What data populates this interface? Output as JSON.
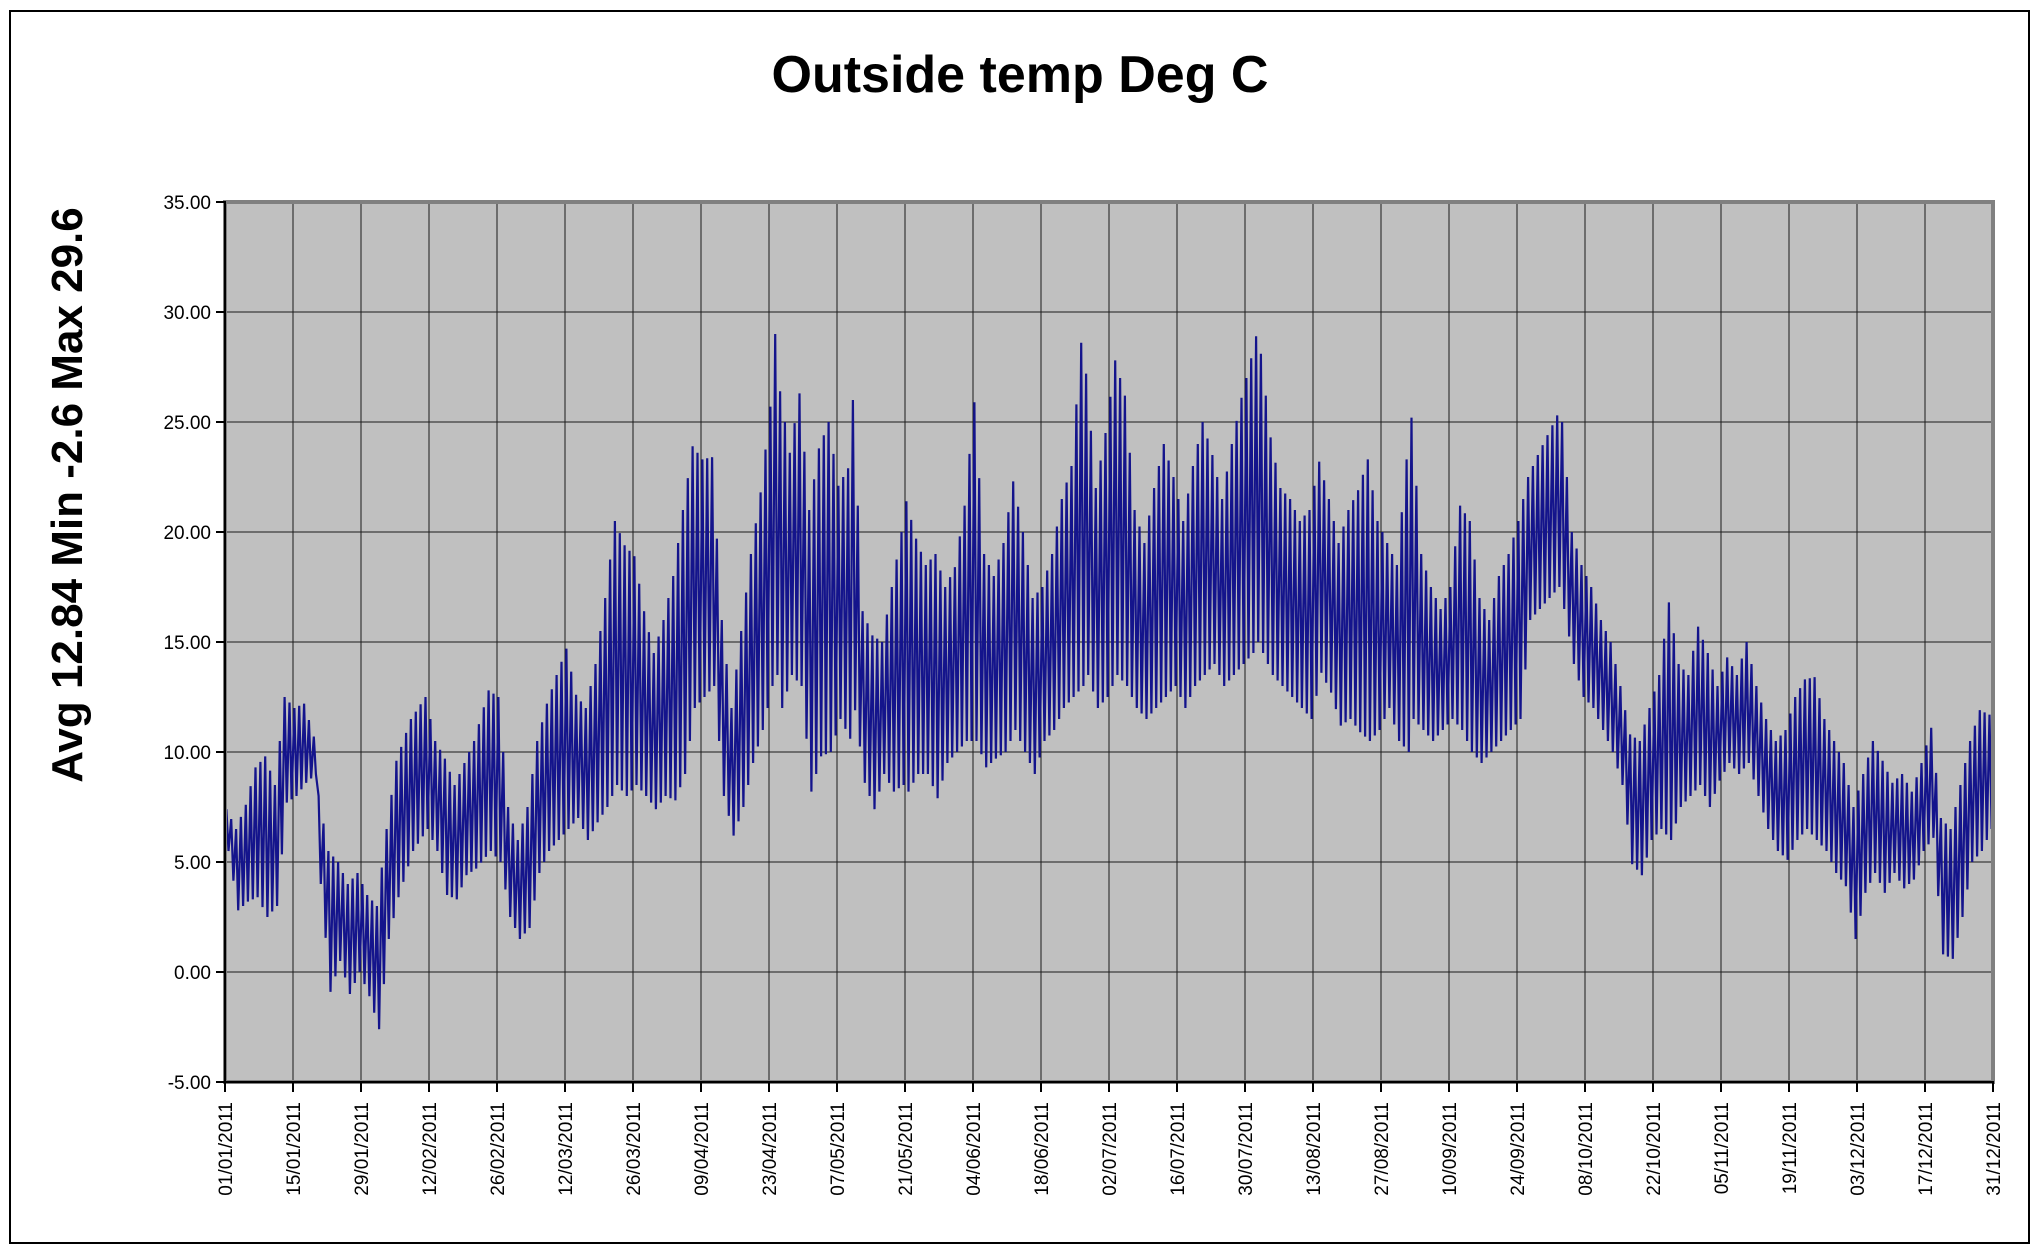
{
  "chart_data": {
    "type": "line",
    "title": "Outside temp Deg C",
    "y_axis_label": "Avg 12.84 Min -2.6 Max 29.6",
    "stats": {
      "avg": 12.84,
      "min": -2.6,
      "max": 29.6,
      "units": "Deg C"
    },
    "grid": true,
    "legend": "none",
    "plot_background_color": "#C0C0C0",
    "gridline_color": "#1a1a1a",
    "plot_border_color": "#808080",
    "axis_color": "#000000",
    "y_axis": {
      "min": -5,
      "max": 35,
      "step": 5,
      "tick_labels": [
        "35.00",
        "30.00",
        "25.00",
        "20.00",
        "15.00",
        "10.00",
        "5.00",
        "0.00",
        "-5.00"
      ]
    },
    "x_axis": {
      "interval_days": 14,
      "tick_labels": [
        "01/01/2011",
        "15/01/2011",
        "29/01/2011",
        "12/02/2011",
        "26/02/2011",
        "12/03/2011",
        "26/03/2011",
        "09/04/2011",
        "23/04/2011",
        "07/05/2011",
        "21/05/2011",
        "04/06/2011",
        "18/06/2011",
        "02/07/2011",
        "16/07/2011",
        "30/07/2011",
        "13/08/2011",
        "27/08/2011",
        "10/09/2011",
        "24/09/2011",
        "08/10/2011",
        "22/10/2011",
        "05/11/2011",
        "19/11/2011",
        "03/12/2011",
        "17/12/2011",
        "31/12/2011"
      ]
    },
    "series": [
      {
        "name": "Outside temp Deg C",
        "color": "#14148C",
        "line_width": 2.2,
        "days_total": 365,
        "sampling": "two samples per day (daytime high / night low), values in Deg C",
        "envelope_keyframes_day_low_high": [
          [
            0,
            5.5,
            7.4
          ],
          [
            2,
            2.8,
            6.5
          ],
          [
            4,
            3.2,
            7.6
          ],
          [
            6,
            3.4,
            9.3
          ],
          [
            8,
            2.5,
            9.8
          ],
          [
            10,
            3.0,
            8.5
          ],
          [
            12,
            7.7,
            12.5
          ],
          [
            14,
            8.0,
            12.0
          ],
          [
            16,
            8.6,
            12.2
          ],
          [
            18,
            9.0,
            10.7
          ],
          [
            19,
            4.0,
            8.0
          ],
          [
            21,
            -0.9,
            5.5
          ],
          [
            23,
            0.5,
            5.0
          ],
          [
            25,
            -1.0,
            4.0
          ],
          [
            27,
            0.0,
            4.5
          ],
          [
            29,
            -1.1,
            3.5
          ],
          [
            31,
            -2.6,
            3.0
          ],
          [
            33,
            1.5,
            6.5
          ],
          [
            35,
            3.4,
            9.6
          ],
          [
            38,
            5.5,
            11.5
          ],
          [
            41,
            6.5,
            12.5
          ],
          [
            43,
            5.5,
            10.5
          ],
          [
            45,
            3.5,
            9.7
          ],
          [
            47,
            3.3,
            8.5
          ],
          [
            49,
            4.4,
            9.5
          ],
          [
            51,
            4.7,
            10.5
          ],
          [
            54,
            5.5,
            12.8
          ],
          [
            56,
            5.0,
            12.5
          ],
          [
            58,
            2.5,
            7.5
          ],
          [
            60,
            1.5,
            6.0
          ],
          [
            62,
            2.0,
            7.5
          ],
          [
            64,
            4.5,
            10.5
          ],
          [
            66,
            5.5,
            12.2
          ],
          [
            68,
            6.0,
            13.5
          ],
          [
            70,
            6.5,
            14.7
          ],
          [
            72,
            7.0,
            12.6
          ],
          [
            74,
            6.0,
            12.0
          ],
          [
            76,
            6.8,
            14.0
          ],
          [
            78,
            7.5,
            17.0
          ],
          [
            80,
            8.5,
            20.5
          ],
          [
            82,
            8.0,
            19.4
          ],
          [
            84,
            8.5,
            18.9
          ],
          [
            86,
            8.0,
            16.4
          ],
          [
            88,
            7.4,
            14.5
          ],
          [
            90,
            8.0,
            16.0
          ],
          [
            92,
            7.8,
            18.0
          ],
          [
            94,
            9.0,
            21.0
          ],
          [
            96,
            12.0,
            23.9
          ],
          [
            98,
            12.5,
            23.3
          ],
          [
            100,
            13.0,
            23.4
          ],
          [
            102,
            8.0,
            16.0
          ],
          [
            104,
            6.2,
            12.0
          ],
          [
            106,
            7.5,
            15.5
          ],
          [
            108,
            9.5,
            19.0
          ],
          [
            110,
            11.0,
            21.8
          ],
          [
            112,
            13.0,
            25.7
          ],
          [
            113,
            13.5,
            29.0
          ],
          [
            114,
            12.0,
            26.4
          ],
          [
            116,
            13.5,
            23.6
          ],
          [
            118,
            13.0,
            26.3
          ],
          [
            120,
            8.2,
            21.0
          ],
          [
            122,
            9.8,
            23.8
          ],
          [
            124,
            10.0,
            25.0
          ],
          [
            126,
            11.5,
            22.1
          ],
          [
            128,
            10.6,
            22.9
          ],
          [
            129,
            11.9,
            26.0
          ],
          [
            131,
            8.6,
            16.4
          ],
          [
            133,
            7.4,
            15.3
          ],
          [
            135,
            9.0,
            15.0
          ],
          [
            137,
            8.2,
            17.5
          ],
          [
            139,
            8.5,
            20.0
          ],
          [
            140,
            8.2,
            21.4
          ],
          [
            142,
            9.0,
            19.7
          ],
          [
            144,
            9.0,
            18.5
          ],
          [
            146,
            7.9,
            19.0
          ],
          [
            148,
            9.5,
            17.5
          ],
          [
            150,
            10.0,
            18.4
          ],
          [
            152,
            10.5,
            21.2
          ],
          [
            154,
            10.5,
            25.9
          ],
          [
            156,
            9.3,
            19.0
          ],
          [
            158,
            9.7,
            18.0
          ],
          [
            160,
            10.0,
            19.5
          ],
          [
            162,
            11.0,
            22.3
          ],
          [
            164,
            10.0,
            20.0
          ],
          [
            166,
            9.0,
            17.0
          ],
          [
            168,
            10.5,
            17.5
          ],
          [
            170,
            11.0,
            19.0
          ],
          [
            172,
            12.0,
            21.5
          ],
          [
            174,
            12.5,
            23.0
          ],
          [
            176,
            13.0,
            28.6
          ],
          [
            177,
            13.5,
            27.2
          ],
          [
            179,
            12.0,
            22.0
          ],
          [
            181,
            12.5,
            24.5
          ],
          [
            183,
            13.5,
            27.8
          ],
          [
            185,
            13.0,
            26.2
          ],
          [
            187,
            12.0,
            21.0
          ],
          [
            189,
            11.5,
            19.5
          ],
          [
            191,
            12.0,
            22.0
          ],
          [
            193,
            12.5,
            24.0
          ],
          [
            195,
            13.0,
            22.5
          ],
          [
            197,
            12.0,
            20.5
          ],
          [
            199,
            13.0,
            23.0
          ],
          [
            201,
            13.5,
            25.0
          ],
          [
            203,
            14.0,
            23.5
          ],
          [
            205,
            13.0,
            21.5
          ],
          [
            207,
            13.5,
            24.0
          ],
          [
            209,
            14.0,
            26.1
          ],
          [
            211,
            14.5,
            27.9
          ],
          [
            212,
            15.0,
            28.9
          ],
          [
            213,
            14.5,
            28.1
          ],
          [
            215,
            13.5,
            24.3
          ],
          [
            217,
            13.0,
            22.0
          ],
          [
            219,
            12.5,
            21.5
          ],
          [
            221,
            12.0,
            20.5
          ],
          [
            223,
            11.5,
            21.0
          ],
          [
            225,
            13.6,
            23.2
          ],
          [
            227,
            12.7,
            21.5
          ],
          [
            229,
            11.2,
            19.5
          ],
          [
            231,
            11.5,
            21.0
          ],
          [
            233,
            10.9,
            21.9
          ],
          [
            235,
            10.5,
            23.3
          ],
          [
            237,
            11.0,
            20.5
          ],
          [
            239,
            12.0,
            19.5
          ],
          [
            241,
            10.5,
            18.5
          ],
          [
            243,
            10.0,
            23.3
          ],
          [
            244,
            11.5,
            25.2
          ],
          [
            246,
            11.0,
            19.0
          ],
          [
            248,
            10.5,
            17.5
          ],
          [
            250,
            11.0,
            16.5
          ],
          [
            252,
            11.5,
            17.5
          ],
          [
            254,
            11.0,
            21.2
          ],
          [
            256,
            10.0,
            20.5
          ],
          [
            258,
            9.5,
            17.0
          ],
          [
            260,
            10.0,
            16.0
          ],
          [
            262,
            10.5,
            18.0
          ],
          [
            264,
            11.0,
            19.0
          ],
          [
            266,
            11.5,
            20.5
          ],
          [
            268,
            16.0,
            22.5
          ],
          [
            270,
            16.5,
            23.5
          ],
          [
            272,
            17.0,
            24.4
          ],
          [
            274,
            17.5,
            25.3
          ],
          [
            275,
            16.5,
            25.0
          ],
          [
            277,
            14.0,
            20.0
          ],
          [
            279,
            12.5,
            18.5
          ],
          [
            281,
            12.0,
            17.5
          ],
          [
            283,
            11.0,
            16.0
          ],
          [
            285,
            10.0,
            15.0
          ],
          [
            287,
            8.5,
            13.0
          ],
          [
            289,
            4.9,
            10.8
          ],
          [
            291,
            4.4,
            10.5
          ],
          [
            293,
            6.0,
            12.0
          ],
          [
            295,
            6.5,
            13.5
          ],
          [
            297,
            6.0,
            16.8
          ],
          [
            299,
            7.5,
            14.0
          ],
          [
            301,
            8.0,
            13.5
          ],
          [
            303,
            8.5,
            15.7
          ],
          [
            305,
            7.5,
            14.5
          ],
          [
            307,
            8.7,
            13.0
          ],
          [
            309,
            9.5,
            14.3
          ],
          [
            311,
            9.0,
            13.5
          ],
          [
            313,
            9.5,
            15.0
          ],
          [
            315,
            8.0,
            13.0
          ],
          [
            317,
            6.5,
            11.5
          ],
          [
            319,
            5.5,
            10.5
          ],
          [
            321,
            5.1,
            11.0
          ],
          [
            323,
            6.0,
            12.5
          ],
          [
            325,
            6.5,
            13.3
          ],
          [
            327,
            6.0,
            13.4
          ],
          [
            329,
            5.5,
            11.5
          ],
          [
            331,
            4.5,
            10.5
          ],
          [
            333,
            3.9,
            9.5
          ],
          [
            335,
            1.5,
            7.5
          ],
          [
            337,
            3.6,
            9.0
          ],
          [
            339,
            4.5,
            10.5
          ],
          [
            341,
            3.6,
            9.6
          ],
          [
            343,
            4.5,
            8.6
          ],
          [
            345,
            3.8,
            9.0
          ],
          [
            347,
            4.2,
            8.2
          ],
          [
            349,
            5.5,
            9.5
          ],
          [
            351,
            6.1,
            11.1
          ],
          [
            353,
            0.8,
            7.0
          ],
          [
            355,
            0.6,
            6.5
          ],
          [
            357,
            2.5,
            8.5
          ],
          [
            359,
            5.0,
            10.5
          ],
          [
            361,
            5.5,
            11.9
          ],
          [
            363,
            6.5,
            11.7
          ],
          [
            364,
            9.5,
            11.7
          ]
        ]
      }
    ]
  }
}
